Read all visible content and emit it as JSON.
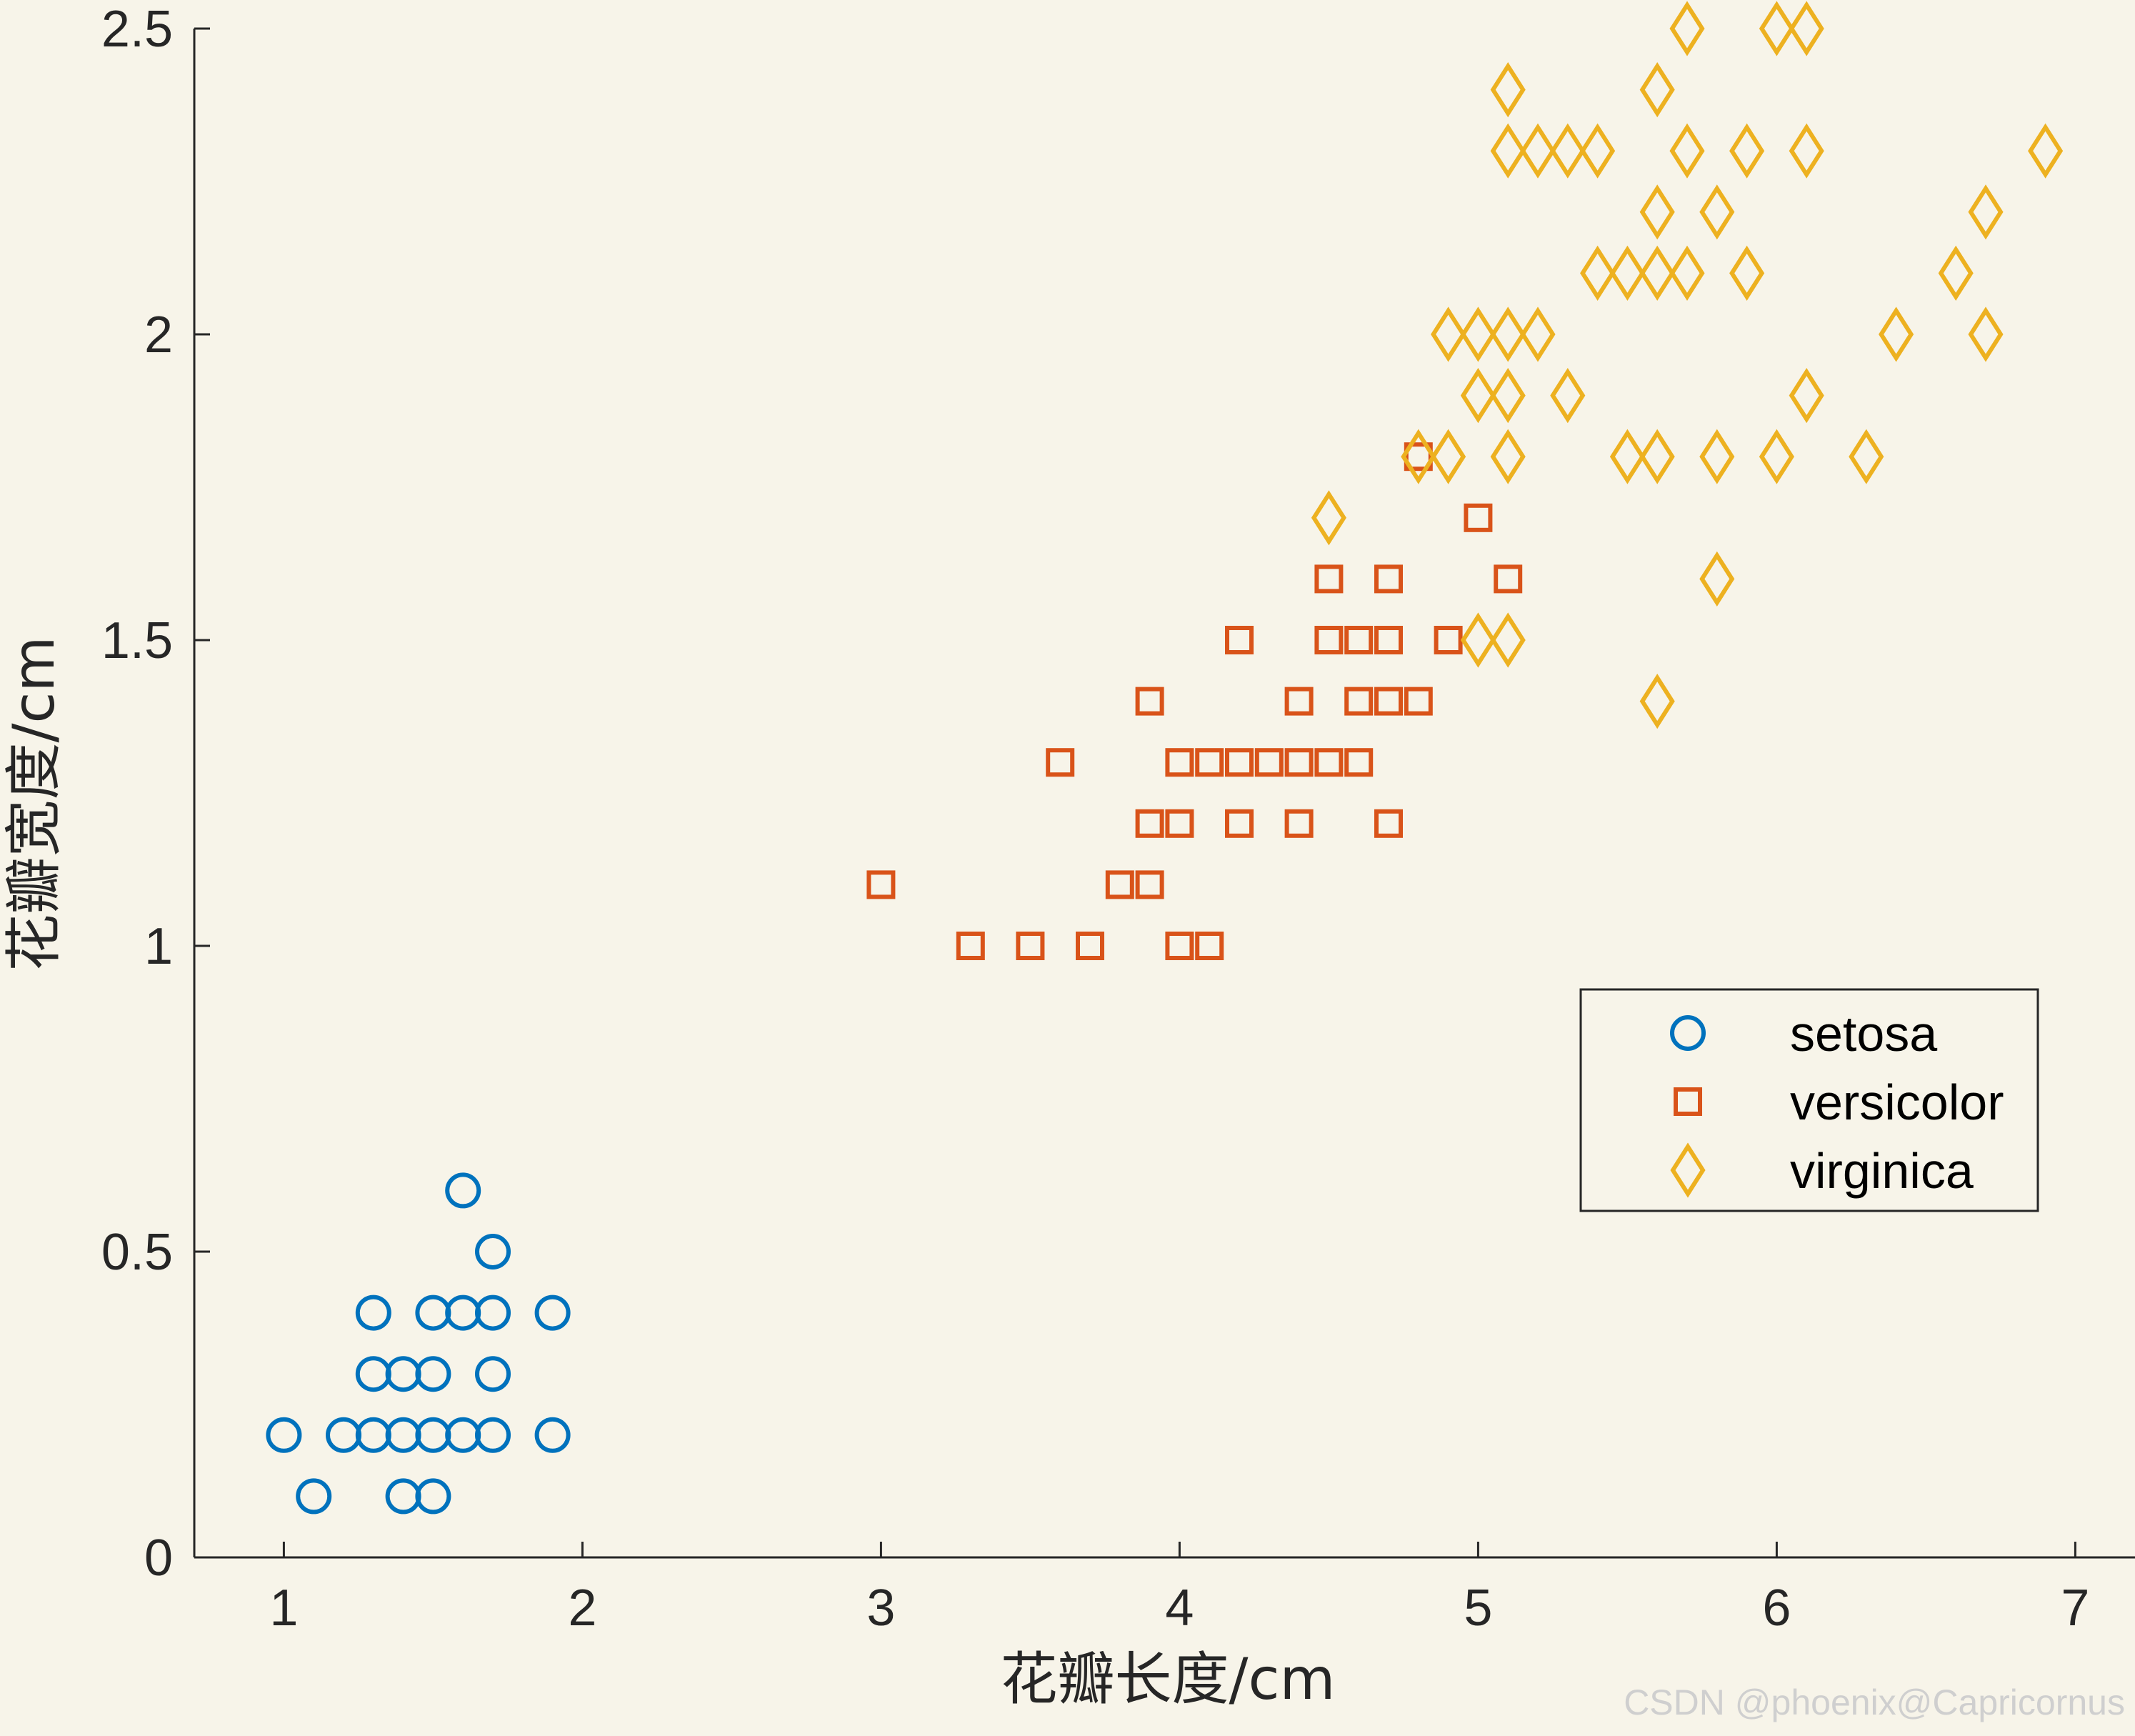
{
  "chart_data": {
    "type": "scatter",
    "xlabel": "花瓣长度/cm",
    "ylabel": "花瓣宽度/cm",
    "xlim": [
      0.7,
      7.2
    ],
    "ylim": [
      0,
      2.5
    ],
    "xticks": [
      1,
      2,
      3,
      4,
      5,
      6,
      7
    ],
    "yticks": [
      0,
      0.5,
      1,
      1.5,
      2,
      2.5
    ],
    "ytick_labels": [
      "0",
      "0.5",
      "1",
      "1.5",
      "2",
      "2.5"
    ],
    "grid": false,
    "legend_position": "right",
    "series": [
      {
        "name": "setosa",
        "marker": "circle",
        "color": "#0072BD",
        "points": [
          [
            1.6,
            0.6
          ],
          [
            1.7,
            0.5
          ],
          [
            1.3,
            0.4
          ],
          [
            1.5,
            0.4
          ],
          [
            1.6,
            0.4
          ],
          [
            1.7,
            0.4
          ],
          [
            1.9,
            0.4
          ],
          [
            1.3,
            0.3
          ],
          [
            1.4,
            0.3
          ],
          [
            1.5,
            0.3
          ],
          [
            1.7,
            0.3
          ],
          [
            1.0,
            0.2
          ],
          [
            1.2,
            0.2
          ],
          [
            1.3,
            0.2
          ],
          [
            1.4,
            0.2
          ],
          [
            1.5,
            0.2
          ],
          [
            1.6,
            0.2
          ],
          [
            1.7,
            0.2
          ],
          [
            1.9,
            0.2
          ],
          [
            1.1,
            0.1
          ],
          [
            1.4,
            0.1
          ],
          [
            1.5,
            0.1
          ]
        ]
      },
      {
        "name": "versicolor",
        "marker": "square",
        "color": "#D95319",
        "points": [
          [
            4.8,
            1.8
          ],
          [
            5.0,
            1.7
          ],
          [
            4.5,
            1.6
          ],
          [
            4.7,
            1.6
          ],
          [
            5.1,
            1.6
          ],
          [
            4.2,
            1.5
          ],
          [
            4.5,
            1.5
          ],
          [
            4.6,
            1.5
          ],
          [
            4.7,
            1.5
          ],
          [
            4.9,
            1.5
          ],
          [
            3.9,
            1.4
          ],
          [
            4.4,
            1.4
          ],
          [
            4.6,
            1.4
          ],
          [
            4.7,
            1.4
          ],
          [
            4.8,
            1.4
          ],
          [
            3.6,
            1.3
          ],
          [
            4.0,
            1.3
          ],
          [
            4.1,
            1.3
          ],
          [
            4.2,
            1.3
          ],
          [
            4.3,
            1.3
          ],
          [
            4.4,
            1.3
          ],
          [
            4.5,
            1.3
          ],
          [
            4.6,
            1.3
          ],
          [
            3.9,
            1.2
          ],
          [
            4.0,
            1.2
          ],
          [
            4.2,
            1.2
          ],
          [
            4.4,
            1.2
          ],
          [
            4.7,
            1.2
          ],
          [
            3.0,
            1.1
          ],
          [
            3.8,
            1.1
          ],
          [
            3.9,
            1.1
          ],
          [
            3.3,
            1.0
          ],
          [
            3.5,
            1.0
          ],
          [
            3.7,
            1.0
          ],
          [
            4.0,
            1.0
          ],
          [
            4.1,
            1.0
          ]
        ]
      },
      {
        "name": "virginica",
        "marker": "diamond",
        "color": "#EDB120",
        "points": [
          [
            5.7,
            2.5
          ],
          [
            6.0,
            2.5
          ],
          [
            6.1,
            2.5
          ],
          [
            5.1,
            2.4
          ],
          [
            5.6,
            2.4
          ],
          [
            5.1,
            2.3
          ],
          [
            5.2,
            2.3
          ],
          [
            5.3,
            2.3
          ],
          [
            5.4,
            2.3
          ],
          [
            5.7,
            2.3
          ],
          [
            5.9,
            2.3
          ],
          [
            6.1,
            2.3
          ],
          [
            6.9,
            2.3
          ],
          [
            5.6,
            2.2
          ],
          [
            5.8,
            2.2
          ],
          [
            6.7,
            2.2
          ],
          [
            5.4,
            2.1
          ],
          [
            5.5,
            2.1
          ],
          [
            5.6,
            2.1
          ],
          [
            5.7,
            2.1
          ],
          [
            5.9,
            2.1
          ],
          [
            6.6,
            2.1
          ],
          [
            4.9,
            2.0
          ],
          [
            5.0,
            2.0
          ],
          [
            5.1,
            2.0
          ],
          [
            5.2,
            2.0
          ],
          [
            6.4,
            2.0
          ],
          [
            6.7,
            2.0
          ],
          [
            5.0,
            1.9
          ],
          [
            5.1,
            1.9
          ],
          [
            5.3,
            1.9
          ],
          [
            6.1,
            1.9
          ],
          [
            4.8,
            1.8
          ],
          [
            4.9,
            1.8
          ],
          [
            5.1,
            1.8
          ],
          [
            5.5,
            1.8
          ],
          [
            5.6,
            1.8
          ],
          [
            5.8,
            1.8
          ],
          [
            6.0,
            1.8
          ],
          [
            6.3,
            1.8
          ],
          [
            4.5,
            1.7
          ],
          [
            5.8,
            1.6
          ],
          [
            5.0,
            1.5
          ],
          [
            5.1,
            1.5
          ],
          [
            5.6,
            1.4
          ]
        ]
      }
    ]
  },
  "watermark": "CSDN @phoenix@Capricornus"
}
